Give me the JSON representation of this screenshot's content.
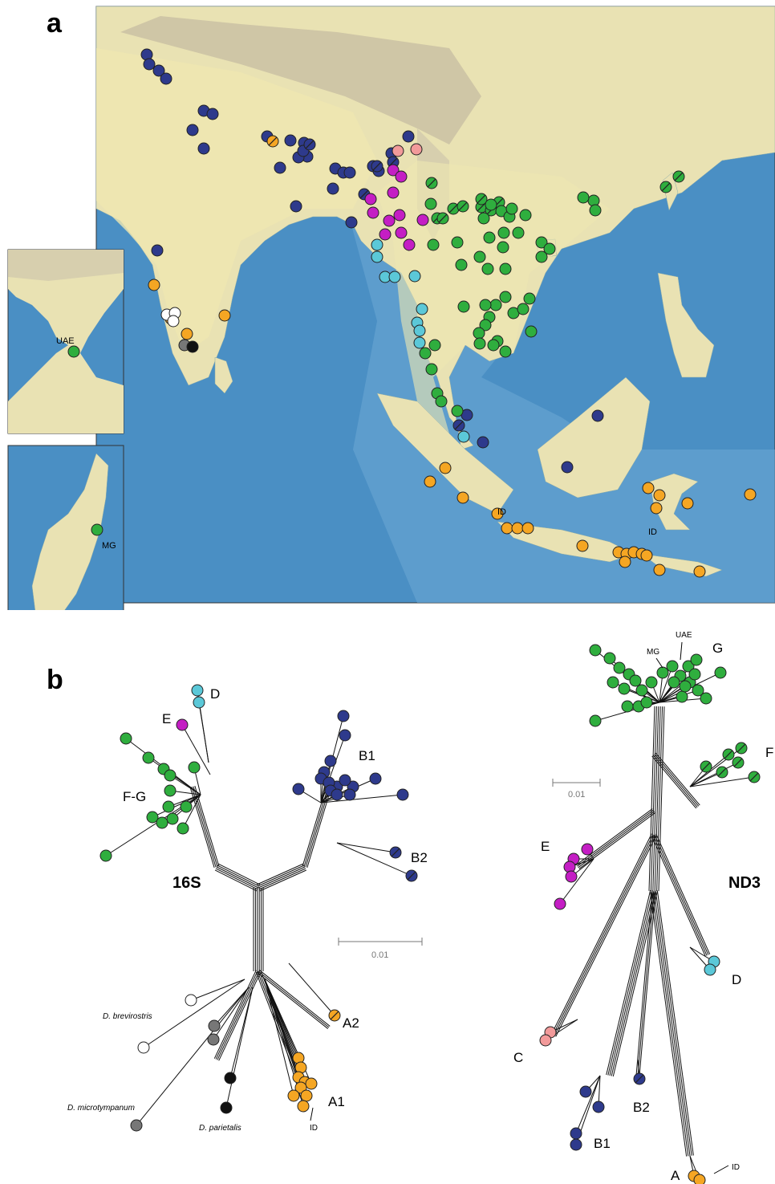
{
  "panels": {
    "a": "a",
    "b": "b"
  },
  "colors": {
    "A": "#f5a623",
    "B": "#2e3a8c",
    "C": "#f29a9a",
    "D": "#5bc8d8",
    "E": "#c41ec4",
    "G": "#2fae3e",
    "white": "#ffffff",
    "grey": "#777777",
    "black": "#111111",
    "land": "#e9e2b3",
    "land_mtn": "#cfc6a6",
    "sea": "#4a8fc4",
    "sea_light": "#7fb6dd",
    "range": "#efe7b0"
  },
  "map": {
    "insets": {
      "uae": "UAE",
      "madagascar": "MG"
    },
    "labels": {
      "id_sumatra": "ID",
      "id_sulawesi": "ID"
    }
  },
  "tree_16s": {
    "title": "16S",
    "scale": "0.01",
    "clades": {
      "D": "D",
      "E": "E",
      "FG": "F-G",
      "B1": "B1",
      "B2": "B2",
      "A2": "A2",
      "A1": "A1",
      "ID": "ID"
    },
    "species": {
      "brevirostris": "D. brevirostris",
      "microtympanum": "D. microtympanum",
      "parietalis": "D. parietalis"
    }
  },
  "tree_nd3": {
    "title": "ND3",
    "scale": "0.01",
    "clades": {
      "G": "G",
      "MG": "MG",
      "UAE": "UAE",
      "F": "F",
      "E": "E",
      "D": "D",
      "C": "C",
      "B1": "B1",
      "B2": "B2",
      "A": "A",
      "ID": "ID"
    }
  }
}
